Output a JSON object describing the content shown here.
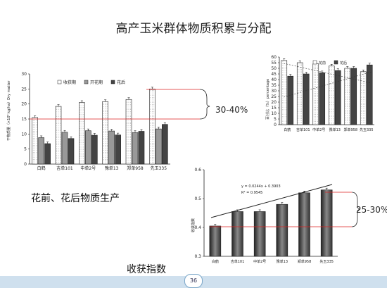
{
  "slide": {
    "title": "高产玉米群体物质积累与分配",
    "caption_left": "花前、花后物质生产",
    "caption_bottom": "收获指数",
    "page_number": "36",
    "band_color": "#cfe0ee"
  },
  "annotations": {
    "left_range": "30-40%",
    "right_range": "25-30%",
    "equation": "y = 0.0244x + 0.3903",
    "r2": "R² = 0.9545"
  },
  "chart_data": [
    {
      "type": "bar",
      "ylabel": "干物质量（×10³ kg/ha）Dry matter",
      "ylim": [
        0,
        30
      ],
      "yticks": [
        0,
        5,
        10,
        15,
        20,
        25,
        30
      ],
      "categories": [
        "白鹤",
        "吉单101",
        "中单2号",
        "豫单13",
        "郑单958",
        "先玉335"
      ],
      "series": [
        {
          "name": "收获期",
          "values": [
            15.5,
            19.2,
            20.5,
            20.8,
            21.5,
            25.0
          ],
          "color": "#fff"
        },
        {
          "name": "开花期",
          "values": [
            8.8,
            10.6,
            11.1,
            11.0,
            10.5,
            11.7
          ],
          "color": "#999"
        },
        {
          "name": "花后",
          "values": [
            6.8,
            8.5,
            9.6,
            9.7,
            10.9,
            13.2
          ],
          "color": "#444"
        }
      ]
    },
    {
      "type": "bar",
      "ylabel": "百分比（%）percentage",
      "ylim": [
        0,
        60
      ],
      "yticks": [
        0,
        5,
        10,
        15,
        20,
        25,
        30,
        35,
        40,
        45,
        50,
        55,
        60
      ],
      "categories": [
        "白鹤",
        "吉单101",
        "中单2号",
        "豫单13",
        "郑单958",
        "先玉335"
      ],
      "series": [
        {
          "name": "花前",
          "values": [
            57,
            55,
            54,
            52,
            50,
            47
          ],
          "color": "#fff"
        },
        {
          "name": "花后",
          "values": [
            43,
            45,
            46,
            48,
            50,
            53
          ],
          "color": "#444"
        }
      ]
    },
    {
      "type": "bar",
      "ylabel": "收获指数",
      "ylim": [
        0.3,
        0.6
      ],
      "yticks": [
        0.3,
        0.4,
        0.5,
        0.6
      ],
      "categories": [
        "白鹤",
        "吉单101",
        "中单2号",
        "豫单13",
        "郑单958",
        "先玉335"
      ],
      "series": [
        {
          "name": "",
          "values": [
            0.405,
            0.455,
            0.455,
            0.48,
            0.52,
            0.53
          ],
          "color": "#555"
        }
      ]
    }
  ]
}
